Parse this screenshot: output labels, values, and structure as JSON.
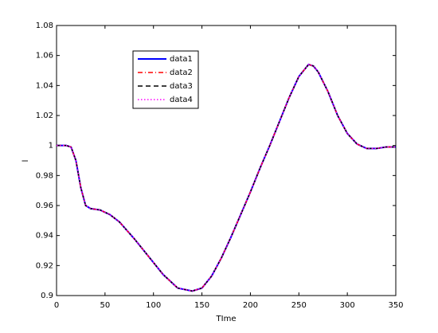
{
  "chart_data": {
    "type": "line",
    "x_label": "TIme",
    "y_label": "l",
    "x": [
      0,
      10,
      15,
      20,
      25,
      30,
      35,
      45,
      55,
      65,
      80,
      95,
      110,
      125,
      140,
      150,
      160,
      170,
      180,
      190,
      200,
      210,
      220,
      230,
      240,
      250,
      260,
      265,
      270,
      280,
      290,
      300,
      310,
      320,
      330,
      340,
      350
    ],
    "series": [
      {
        "name": "data1",
        "color": "#0000ff",
        "dash": "solid",
        "values": [
          1,
          1,
          0.999,
          0.99,
          0.972,
          0.96,
          0.958,
          0.957,
          0.954,
          0.949,
          0.938,
          0.926,
          0.914,
          0.905,
          0.903,
          0.905,
          0.913,
          0.925,
          0.939,
          0.954,
          0.969,
          0.985,
          1.0,
          1.016,
          1.032,
          1.046,
          1.054,
          1.053,
          1.049,
          1.036,
          1.02,
          1.008,
          1.001,
          0.998,
          0.998,
          0.999,
          0.999
        ]
      },
      {
        "name": "data2",
        "color": "#ff0000",
        "dash": "dashdot",
        "values": [
          1,
          1,
          0.999,
          0.99,
          0.972,
          0.96,
          0.958,
          0.957,
          0.954,
          0.949,
          0.938,
          0.926,
          0.914,
          0.905,
          0.903,
          0.905,
          0.913,
          0.925,
          0.939,
          0.954,
          0.969,
          0.985,
          1.0,
          1.016,
          1.032,
          1.046,
          1.054,
          1.053,
          1.049,
          1.036,
          1.02,
          1.008,
          1.001,
          0.998,
          0.998,
          0.999,
          0.999
        ]
      },
      {
        "name": "data3",
        "color": "#000000",
        "dash": "dashed",
        "values": [
          1,
          1,
          0.999,
          0.99,
          0.972,
          0.96,
          0.958,
          0.957,
          0.954,
          0.949,
          0.938,
          0.926,
          0.914,
          0.905,
          0.903,
          0.905,
          0.913,
          0.925,
          0.939,
          0.954,
          0.969,
          0.985,
          1.0,
          1.016,
          1.032,
          1.046,
          1.054,
          1.053,
          1.049,
          1.036,
          1.02,
          1.008,
          1.001,
          0.998,
          0.998,
          0.999,
          0.999
        ]
      },
      {
        "name": "data4",
        "color": "#ff00ff",
        "dash": "dotted",
        "values": [
          1,
          1,
          0.999,
          0.99,
          0.972,
          0.96,
          0.958,
          0.957,
          0.954,
          0.949,
          0.938,
          0.926,
          0.914,
          0.905,
          0.903,
          0.905,
          0.913,
          0.925,
          0.939,
          0.954,
          0.969,
          0.985,
          1.0,
          1.016,
          1.032,
          1.046,
          1.054,
          1.053,
          1.049,
          1.036,
          1.02,
          1.008,
          1.001,
          0.998,
          0.998,
          0.999,
          0.999
        ]
      }
    ],
    "xlim": [
      0,
      350
    ],
    "xticks": [
      0,
      50,
      100,
      150,
      200,
      250,
      300,
      350
    ],
    "ylim": [
      0.9,
      1.08
    ],
    "yticks": [
      0.9,
      0.92,
      0.94,
      0.96,
      0.98,
      1,
      1.02,
      1.04,
      1.06,
      1.08
    ],
    "grid": false,
    "legend": "upper left"
  }
}
